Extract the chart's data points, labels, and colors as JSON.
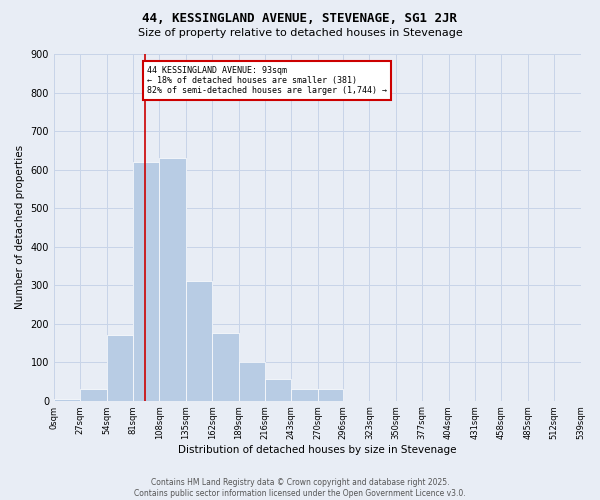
{
  "title": "44, KESSINGLAND AVENUE, STEVENAGE, SG1 2JR",
  "subtitle": "Size of property relative to detached houses in Stevenage",
  "xlabel": "Distribution of detached houses by size in Stevenage",
  "ylabel": "Number of detached properties",
  "bin_edges": [
    0,
    27,
    54,
    81,
    108,
    135,
    162,
    189,
    216,
    243,
    270,
    296,
    323,
    350,
    377,
    404,
    431,
    458,
    485,
    512,
    539
  ],
  "bin_counts": [
    5,
    30,
    170,
    620,
    630,
    310,
    175,
    100,
    55,
    30,
    30,
    0,
    0,
    0,
    0,
    0,
    0,
    0,
    0,
    0
  ],
  "bar_color": "#b8cce4",
  "grid_color": "#c8d4e8",
  "property_line_x": 93,
  "property_line_color": "#cc0000",
  "annotation_text": "44 KESSINGLAND AVENUE: 93sqm\n← 18% of detached houses are smaller (381)\n82% of semi-detached houses are larger (1,744) →",
  "annotation_box_color": "#cc0000",
  "annotation_bg": "#ffffff",
  "ylim": [
    0,
    900
  ],
  "yticks": [
    0,
    100,
    200,
    300,
    400,
    500,
    600,
    700,
    800,
    900
  ],
  "footer_line1": "Contains HM Land Registry data © Crown copyright and database right 2025.",
  "footer_line2": "Contains public sector information licensed under the Open Government Licence v3.0.",
  "bg_color": "#e8edf5"
}
